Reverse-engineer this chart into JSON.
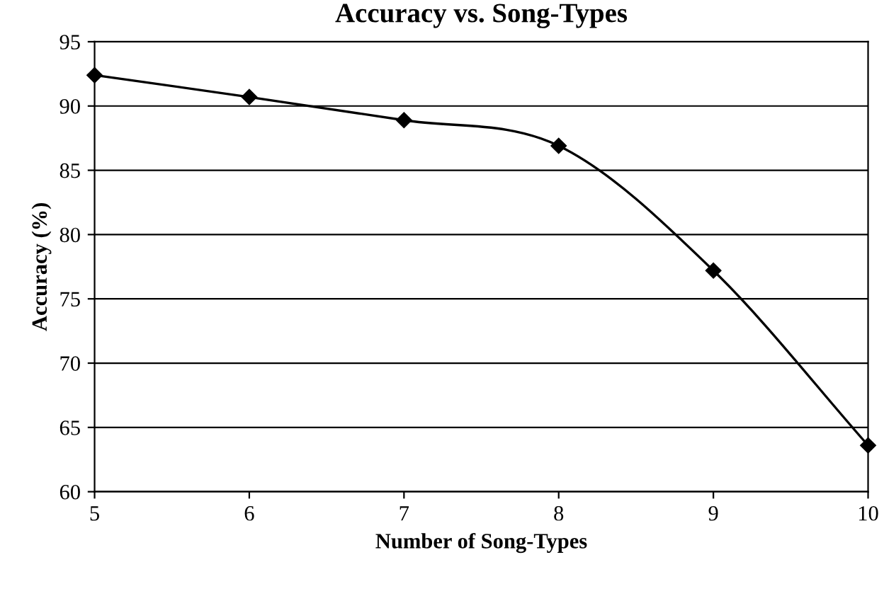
{
  "chart_data": {
    "type": "line",
    "title": "Accuracy vs. Song-Types",
    "xlabel": "Number of Song-Types",
    "ylabel": "Accuracy (%)",
    "x": [
      5,
      6,
      7,
      8,
      9,
      10
    ],
    "series": [
      {
        "color": "#000000",
        "values": [
          92.4,
          90.7,
          88.9,
          86.9,
          77.2,
          63.6
        ]
      }
    ],
    "xlim": [
      5,
      10
    ],
    "xticks": [
      5,
      6,
      7,
      8,
      9,
      10
    ],
    "ylim": [
      60,
      95
    ],
    "yticks": [
      60,
      65,
      70,
      75,
      80,
      85,
      90,
      95
    ],
    "grid": "y",
    "marker": "diamond",
    "line_style": "solid",
    "legend": false
  }
}
